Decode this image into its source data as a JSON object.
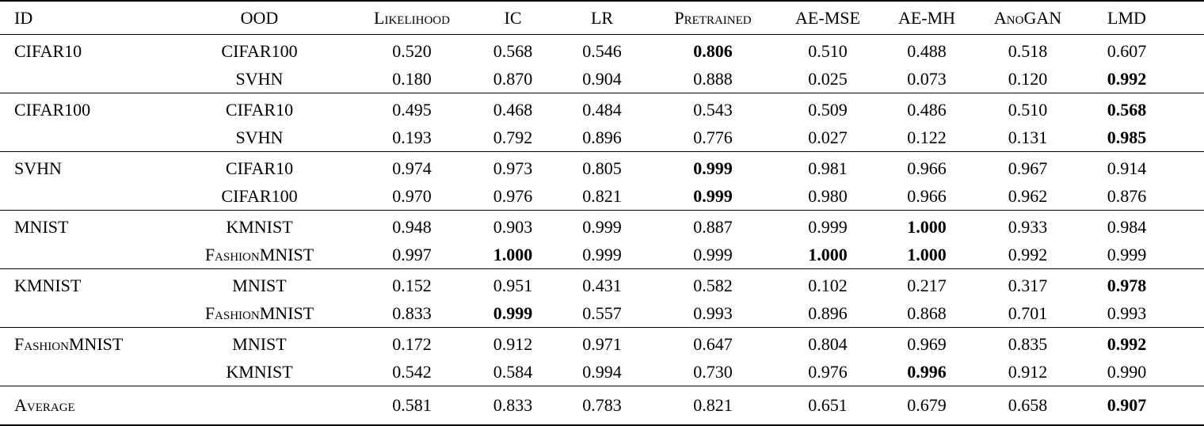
{
  "columns": [
    "ID",
    "OOD",
    "Likelihood",
    "IC",
    "LR",
    "Pretrained",
    "AE-MSE",
    "AE-MH",
    "AnoGAN",
    "LMD"
  ],
  "groups": [
    {
      "id": "CIFAR10",
      "rows": [
        {
          "ood": "CIFAR100",
          "values": [
            "0.520",
            "0.568",
            "0.546",
            "0.806",
            "0.510",
            "0.488",
            "0.518",
            "0.607"
          ],
          "bold": [
            3
          ]
        },
        {
          "ood": "SVHN",
          "values": [
            "0.180",
            "0.870",
            "0.904",
            "0.888",
            "0.025",
            "0.073",
            "0.120",
            "0.992"
          ],
          "bold": [
            7
          ]
        }
      ]
    },
    {
      "id": "CIFAR100",
      "rows": [
        {
          "ood": "CIFAR10",
          "values": [
            "0.495",
            "0.468",
            "0.484",
            "0.543",
            "0.509",
            "0.486",
            "0.510",
            "0.568"
          ],
          "bold": [
            7
          ]
        },
        {
          "ood": "SVHN",
          "values": [
            "0.193",
            "0.792",
            "0.896",
            "0.776",
            "0.027",
            "0.122",
            "0.131",
            "0.985"
          ],
          "bold": [
            7
          ]
        }
      ]
    },
    {
      "id": "SVHN",
      "rows": [
        {
          "ood": "CIFAR10",
          "values": [
            "0.974",
            "0.973",
            "0.805",
            "0.999",
            "0.981",
            "0.966",
            "0.967",
            "0.914"
          ],
          "bold": [
            3
          ]
        },
        {
          "ood": "CIFAR100",
          "values": [
            "0.970",
            "0.976",
            "0.821",
            "0.999",
            "0.980",
            "0.966",
            "0.962",
            "0.876"
          ],
          "bold": [
            3
          ]
        }
      ]
    },
    {
      "id": "MNIST",
      "rows": [
        {
          "ood": "KMNIST",
          "values": [
            "0.948",
            "0.903",
            "0.999",
            "0.887",
            "0.999",
            "1.000",
            "0.933",
            "0.984"
          ],
          "bold": [
            5
          ]
        },
        {
          "ood": "FashionMNIST",
          "values": [
            "0.997",
            "1.000",
            "0.999",
            "0.999",
            "1.000",
            "1.000",
            "0.992",
            "0.999"
          ],
          "bold": [
            1,
            4,
            5
          ]
        }
      ]
    },
    {
      "id": "KMNIST",
      "rows": [
        {
          "ood": "MNIST",
          "values": [
            "0.152",
            "0.951",
            "0.431",
            "0.582",
            "0.102",
            "0.217",
            "0.317",
            "0.978"
          ],
          "bold": [
            7
          ]
        },
        {
          "ood": "FashionMNIST",
          "values": [
            "0.833",
            "0.999",
            "0.557",
            "0.993",
            "0.896",
            "0.868",
            "0.701",
            "0.993"
          ],
          "bold": [
            1
          ]
        }
      ]
    },
    {
      "id": "FashionMNIST",
      "rows": [
        {
          "ood": "MNIST",
          "values": [
            "0.172",
            "0.912",
            "0.971",
            "0.647",
            "0.804",
            "0.969",
            "0.835",
            "0.992"
          ],
          "bold": [
            7
          ]
        },
        {
          "ood": "KMNIST",
          "values": [
            "0.542",
            "0.584",
            "0.994",
            "0.730",
            "0.976",
            "0.996",
            "0.912",
            "0.990"
          ],
          "bold": [
            5
          ]
        }
      ]
    }
  ],
  "footer": {
    "label": "Average",
    "values": [
      "0.581",
      "0.833",
      "0.783",
      "0.821",
      "0.651",
      "0.679",
      "0.658",
      "0.907"
    ],
    "bold": [
      7
    ]
  }
}
